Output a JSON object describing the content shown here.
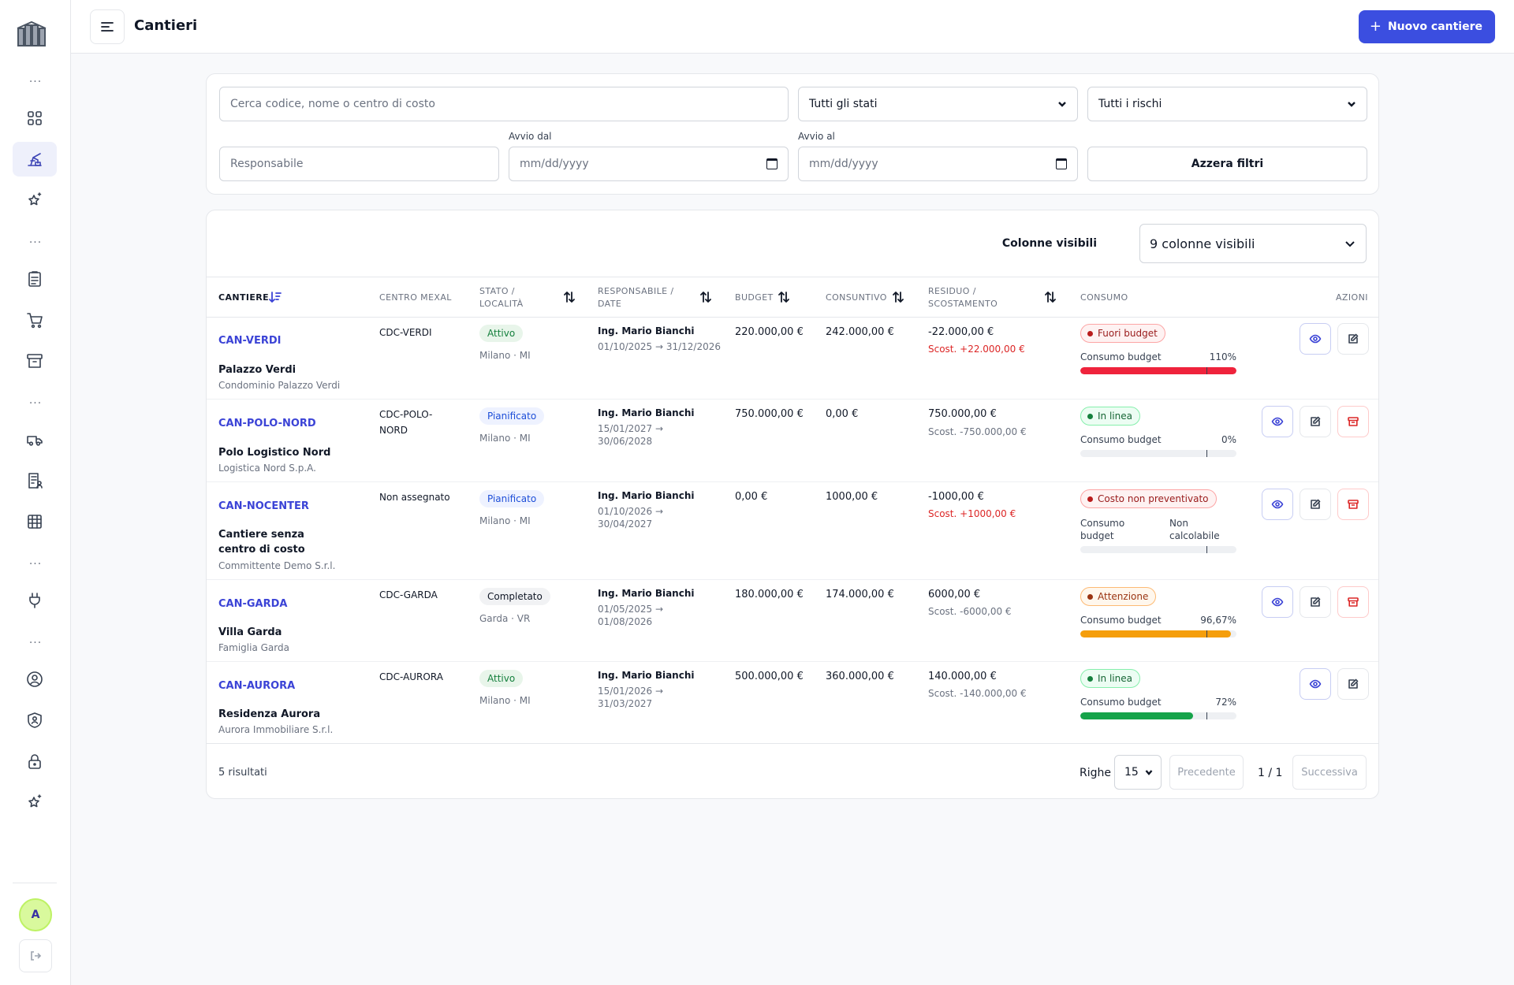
{
  "header": {
    "title": "Cantieri",
    "new_button": "Nuovo cantiere"
  },
  "filters": {
    "search_placeholder": "Cerca codice, nome o centro di costo",
    "stato_selected": "Tutti gli stati",
    "rischio_selected": "Tutti i rischi",
    "responsabile_placeholder": "Responsabile",
    "avvio_dal_label": "Avvio dal",
    "avvio_al_label": "Avvio al",
    "date_placeholder": "mm/dd/yyyy",
    "reset_button": "Azzera filtri"
  },
  "columns_visible": {
    "label": "Colonne visibili",
    "value": "9 colonne visibili"
  },
  "table": {
    "headers": {
      "cantiere": "CANTIERE",
      "centro": "CENTRO MEXAL",
      "stato": "STATO /",
      "stato2": "LOCALITÀ",
      "resp": "RESPONSABILE /",
      "resp2": "DATE",
      "budget": "BUDGET",
      "consuntivo": "CONSUNTIVO",
      "residuo": "RESIDUO /",
      "residuo2": "SCOSTAMENTO",
      "consumo": "CONSUMO",
      "azioni": "AZIONI"
    },
    "rows": [
      {
        "code": "CAN-VERDI",
        "name": "Palazzo Verdi",
        "client": "Condominio Palazzo Verdi",
        "centro": "CDC-VERDI",
        "stato": "Attivo",
        "localita": "Milano · MI",
        "resp": "Ing. Mario Bianchi",
        "date1": "01/10/2025 → 31/12/2026",
        "date2": "",
        "budget": "220.000,00 €",
        "consuntivo": "242.000,00 €",
        "residuo": "-22.000,00 €",
        "scost": "Scost. +22.000,00 €",
        "status": "Fuori budget",
        "cons_label": "Consumo budget",
        "cons_pct": "110%",
        "cons_value": 110
      },
      {
        "code": "CAN-POLO-NORD",
        "name": "Polo Logistico Nord",
        "client": "Logistica Nord S.p.A.",
        "centro": "CDC-POLO-",
        "centro2": "NORD",
        "stato": "Pianificato",
        "localita": "Milano · MI",
        "resp": "Ing. Mario Bianchi",
        "date1": "15/01/2027 →",
        "date2": "30/06/2028",
        "budget": "750.000,00 €",
        "consuntivo": "0,00 €",
        "residuo": "750.000,00 €",
        "scost": "Scost. -750.000,00 €",
        "status": "In linea",
        "cons_label": "Consumo budget",
        "cons_pct": "0%",
        "cons_value": 0
      },
      {
        "code": "CAN-NOCENTER",
        "name": "Cantiere senza centro di costo",
        "client": "Committente Demo S.r.l.",
        "centro": "Non assegnato",
        "stato": "Pianificato",
        "localita": "Milano · MI",
        "resp": "Ing. Mario Bianchi",
        "date1": "01/10/2026 →",
        "date2": "30/04/2027",
        "budget": "0,00 €",
        "consuntivo": "1000,00 €",
        "residuo": "-1000,00 €",
        "scost": "Scost. +1000,00 €",
        "status": "Costo non preventivato",
        "cons_label1": "Consumo",
        "cons_label2": "budget",
        "cons_pct1": "Non",
        "cons_pct2": "calcolabile",
        "cons_value": 0
      },
      {
        "code": "CAN-GARDA",
        "name": "Villa Garda",
        "client": "Famiglia Garda",
        "centro": "CDC-GARDA",
        "stato": "Completato",
        "localita": "Garda · VR",
        "resp": "Ing. Mario Bianchi",
        "date1": "01/05/2025 →",
        "date2": "01/08/2026",
        "budget": "180.000,00 €",
        "consuntivo": "174.000,00 €",
        "residuo": "6000,00 €",
        "scost": "Scost. -6000,00 €",
        "status": "Attenzione",
        "cons_label": "Consumo budget",
        "cons_pct": "96,67%",
        "cons_value": 96.67
      },
      {
        "code": "CAN-AURORA",
        "name": "Residenza Aurora",
        "client": "Aurora Immobiliare S.r.l.",
        "centro": "CDC-AURORA",
        "stato": "Attivo",
        "localita": "Milano · MI",
        "resp": "Ing. Mario Bianchi",
        "date1": "15/01/2026 →",
        "date2": "31/03/2027",
        "budget": "500.000,00 €",
        "consuntivo": "360.000,00 €",
        "residuo": "140.000,00 €",
        "scost": "Scost. -140.000,00 €",
        "status": "In linea",
        "cons_label": "Consumo budget",
        "cons_pct": "72%",
        "cons_value": 72
      }
    ]
  },
  "footer": {
    "count": "5 risultati",
    "righe_label": "Righe",
    "righe_value": "15",
    "prev": "Precedente",
    "page": "1 / 1",
    "next": "Successiva"
  },
  "user": {
    "initial": "A"
  },
  "colors": {
    "accent": "#3b4ee0",
    "red": "#ef233c",
    "orange": "#f59e0b",
    "green": "#16a34a"
  }
}
